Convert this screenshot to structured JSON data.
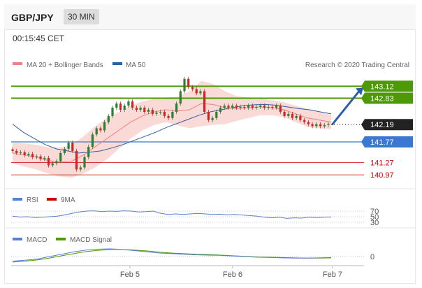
{
  "header": {
    "pair": "GBP/JPY",
    "timeframe": "30 MIN",
    "time": "00:15:45 CET"
  },
  "legend": {
    "ma20_bb": "MA 20 + Bollinger Bands",
    "ma50": "MA 50",
    "credit": "Research © 2020 Trading Central",
    "rsi": "RSI",
    "rsi_ma": "9MA",
    "macd": "MACD",
    "macd_signal": "MACD Signal"
  },
  "colors": {
    "bb_fill": "#f9d3d0",
    "ma20": "#f08080",
    "ma50": "#2f5fa7",
    "resistance": "#4d9a06",
    "current": "#222222",
    "support_blue": "#3a78d4",
    "support_red": "#cc0000",
    "candle_up": "#2e7d32",
    "candle_down": "#c62828",
    "rsi": "#5b7fd0",
    "rsi_ma": "#cc0000",
    "macd": "#5b7fd0",
    "macd_signal": "#4d9a06",
    "arrow": "#2d5fa8"
  },
  "chart_data": [
    {
      "type": "candlestick",
      "x_labels": [
        "Feb 5",
        "Feb 6",
        "Feb 7"
      ],
      "y_range": [
        140.7,
        143.45
      ],
      "levels": [
        {
          "value": 143.12,
          "label": "143.12",
          "kind": "resistance"
        },
        {
          "value": 142.83,
          "label": "142.83",
          "kind": "resistance"
        },
        {
          "value": 142.19,
          "label": "142.19",
          "kind": "current"
        },
        {
          "value": 141.77,
          "label": "141.77",
          "kind": "support_blue"
        },
        {
          "value": 141.27,
          "label": "141.27",
          "kind": "support_red"
        },
        {
          "value": 140.97,
          "label": "140.97",
          "kind": "support_red"
        }
      ],
      "closes": [
        141.55,
        141.5,
        141.52,
        141.45,
        141.48,
        141.4,
        141.42,
        141.35,
        141.38,
        141.2,
        141.25,
        141.3,
        141.5,
        141.6,
        141.75,
        141.55,
        141.1,
        141.15,
        141.4,
        141.65,
        141.95,
        142.1,
        142.05,
        142.25,
        142.4,
        142.6,
        142.7,
        142.55,
        142.65,
        142.75,
        142.6,
        142.55,
        142.6,
        142.5,
        142.55,
        142.45,
        142.48,
        142.5,
        142.4,
        142.35,
        142.5,
        142.7,
        143.0,
        143.3,
        143.1,
        143.05,
        142.95,
        143.0,
        142.5,
        142.3,
        142.35,
        142.5,
        142.6,
        142.65,
        142.6,
        142.65,
        142.6,
        142.62,
        142.6,
        142.65,
        142.6,
        142.62,
        142.65,
        142.6,
        142.62,
        142.6,
        142.65,
        142.5,
        142.4,
        142.45,
        142.35,
        142.4,
        142.3,
        142.25,
        142.2,
        142.15,
        142.2,
        142.15,
        142.18,
        142.2
      ],
      "ma50": [
        142.2,
        142.0,
        141.85,
        141.7,
        141.6,
        141.55,
        141.5,
        141.52,
        141.55,
        141.62,
        141.7,
        141.8,
        141.9,
        142.0,
        142.12,
        142.22,
        142.32,
        142.42,
        142.5,
        142.55,
        142.6,
        142.65,
        142.67,
        142.68,
        142.66,
        142.62,
        142.58,
        142.55,
        142.5,
        142.45
      ],
      "ma20": [
        141.5,
        141.45,
        141.4,
        141.32,
        141.28,
        141.3,
        141.45,
        141.65,
        141.85,
        142.05,
        142.25,
        142.4,
        142.5,
        142.55,
        142.52,
        142.55,
        142.7,
        142.68,
        142.6,
        142.58,
        142.6,
        142.62,
        142.6,
        142.55,
        142.45,
        142.35,
        142.3,
        142.25
      ],
      "bb_width": [
        0.25,
        0.28,
        0.3,
        0.32,
        0.35,
        0.4,
        0.45,
        0.5,
        0.5,
        0.45,
        0.4,
        0.35,
        0.32,
        0.3,
        0.35,
        0.45,
        0.55,
        0.5,
        0.4,
        0.3,
        0.25,
        0.2,
        0.18,
        0.18,
        0.2,
        0.22,
        0.2,
        0.18
      ]
    },
    {
      "type": "line",
      "name": "RSI",
      "y_ticks": [
        70,
        50,
        30
      ],
      "y_range": [
        20,
        80
      ],
      "values": [
        52,
        49,
        50,
        47,
        48,
        50,
        52,
        56,
        62,
        67,
        70,
        71,
        68,
        70,
        69,
        71,
        70,
        67,
        68,
        70,
        62,
        58,
        60,
        58,
        60,
        62,
        60,
        58,
        59,
        57,
        58,
        56,
        54,
        52,
        48,
        46,
        48,
        44,
        46,
        45,
        48,
        47,
        48,
        49
      ],
      "ma": [
        51,
        50,
        49,
        49,
        50,
        52,
        56,
        61,
        65,
        68,
        69,
        69,
        69,
        69,
        69,
        68,
        66,
        64,
        62,
        61,
        60,
        59,
        58,
        58,
        57,
        56,
        55,
        53,
        52,
        50,
        49,
        48,
        47,
        47,
        47,
        48
      ]
    },
    {
      "type": "line",
      "name": "MACD",
      "y_ticks": [
        0
      ],
      "y_range": [
        -0.3,
        0.4
      ],
      "macd": [
        -0.15,
        -0.12,
        -0.08,
        0.0,
        0.08,
        0.16,
        0.22,
        0.25,
        0.26,
        0.24,
        0.2,
        0.16,
        0.12,
        0.1,
        0.08,
        0.06,
        0.05,
        0.04,
        0.02,
        0.0,
        -0.02,
        -0.03,
        -0.04,
        -0.05,
        -0.05,
        -0.04,
        -0.03
      ],
      "signal": [
        -0.18,
        -0.15,
        -0.11,
        -0.05,
        0.03,
        0.1,
        0.17,
        0.21,
        0.24,
        0.24,
        0.22,
        0.19,
        0.15,
        0.12,
        0.1,
        0.08,
        0.07,
        0.05,
        0.03,
        0.01,
        -0.01,
        -0.02,
        -0.03,
        -0.04,
        -0.05,
        -0.05,
        -0.04
      ]
    }
  ]
}
